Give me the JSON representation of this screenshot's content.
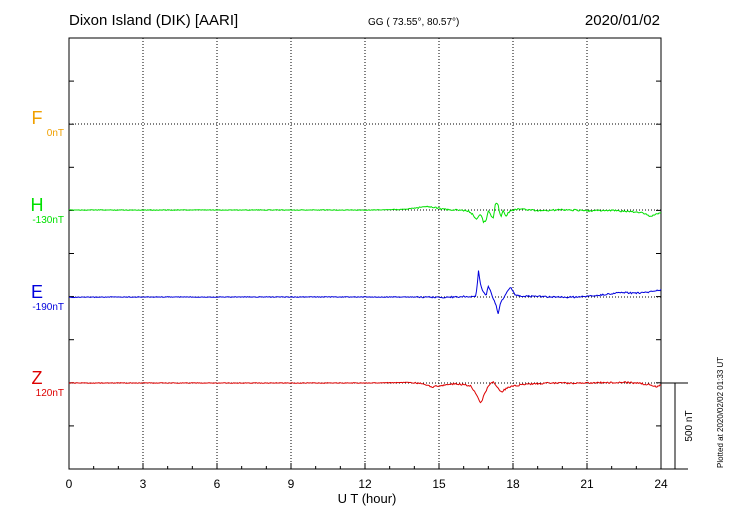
{
  "header": {
    "station": "Dixon Island (DIK)  [AARI]",
    "coords": "GG ( 73.55°,  80.57°)",
    "date": "2020/01/02"
  },
  "credit": "Plotted at 2020/02/02 01:33 UT",
  "scale_label": "500 nT",
  "colors": {
    "F": "#f0a000",
    "H": "#00e000",
    "E": "#0000dd",
    "Z": "#dd0000",
    "grid": "#000000"
  },
  "chart_data": {
    "type": "line",
    "title": "Dixon Island (DIK)  [AARI]",
    "xlabel": "U T (hour)",
    "ylabel": "",
    "xlim": [
      0,
      24
    ],
    "xticks": [
      0,
      3,
      6,
      9,
      12,
      15,
      18,
      21,
      24
    ],
    "scale_bar_nT": 500,
    "grid": true,
    "series": [
      {
        "name": "F",
        "baseline": "0nT",
        "baseline_nT": 0,
        "x": [],
        "y": []
      },
      {
        "name": "H",
        "baseline": "-130nT",
        "baseline_nT": -130,
        "x": [
          0,
          2,
          4,
          6,
          8,
          10,
          12,
          13.5,
          14.2,
          14.5,
          14.8,
          15.2,
          15.6,
          16.0,
          16.2,
          16.4,
          16.5,
          16.7,
          16.8,
          16.9,
          17.0,
          17.1,
          17.2,
          17.3,
          17.4,
          17.5,
          17.6,
          17.7,
          17.8,
          17.9,
          18.0,
          18.3,
          18.7,
          19.0,
          19.5,
          20.0,
          20.5,
          21.0,
          21.5,
          22.0,
          22.5,
          23.0,
          23.3,
          23.6,
          23.8,
          24.0
        ],
        "y": [
          0,
          0,
          0,
          0,
          0,
          0,
          0,
          3,
          14,
          23,
          16,
          3,
          0,
          -3,
          -6,
          -30,
          -55,
          -25,
          -70,
          -65,
          -5,
          -30,
          -45,
          45,
          25,
          -40,
          -5,
          -35,
          -18,
          -5,
          0,
          6,
          0,
          -4,
          -2,
          2,
          0,
          -6,
          -3,
          -2,
          -8,
          -12,
          -18,
          -38,
          -22,
          -18
        ]
      },
      {
        "name": "E",
        "baseline": "-190nT",
        "baseline_nT": -190,
        "x": [
          0,
          2,
          4,
          6,
          8,
          10,
          12,
          14,
          15.0,
          15.6,
          16.1,
          16.3,
          16.5,
          16.6,
          16.7,
          16.9,
          17.0,
          17.1,
          17.2,
          17.3,
          17.4,
          17.5,
          17.6,
          17.8,
          17.9,
          18.1,
          18.5,
          19.0,
          19.5,
          20.0,
          20.5,
          21.0,
          21.5,
          22.0,
          22.5,
          23.0,
          23.5,
          24.0
        ],
        "y": [
          -2,
          0,
          0,
          0,
          0,
          0,
          0,
          0,
          -2,
          0,
          3,
          2,
          5,
          150,
          60,
          5,
          65,
          35,
          -15,
          -40,
          -100,
          -30,
          -8,
          40,
          55,
          10,
          4,
          4,
          0,
          -2,
          0,
          4,
          10,
          20,
          26,
          22,
          30,
          40
        ]
      },
      {
        "name": "Z",
        "baseline": "120nT",
        "baseline_nT": 120,
        "x": [
          0,
          2,
          4,
          6,
          8,
          10,
          12,
          13,
          13.8,
          14.3,
          14.7,
          15.2,
          15.7,
          16.0,
          16.3,
          16.5,
          16.7,
          16.8,
          17.0,
          17.2,
          17.5,
          17.8,
          18.1,
          18.5,
          19.0,
          19.5,
          20.0,
          20.5,
          21.0,
          21.5,
          22.0,
          22.5,
          23.0,
          23.5,
          23.8,
          24.0
        ],
        "y": [
          0,
          0,
          0,
          0,
          0,
          0,
          0,
          2,
          3,
          -5,
          -23,
          -12,
          -4,
          -10,
          -18,
          -60,
          -120,
          -80,
          -15,
          10,
          -55,
          -25,
          -15,
          -8,
          -4,
          0,
          0,
          -2,
          0,
          2,
          2,
          4,
          0,
          -10,
          -20,
          -10
        ]
      }
    ]
  }
}
